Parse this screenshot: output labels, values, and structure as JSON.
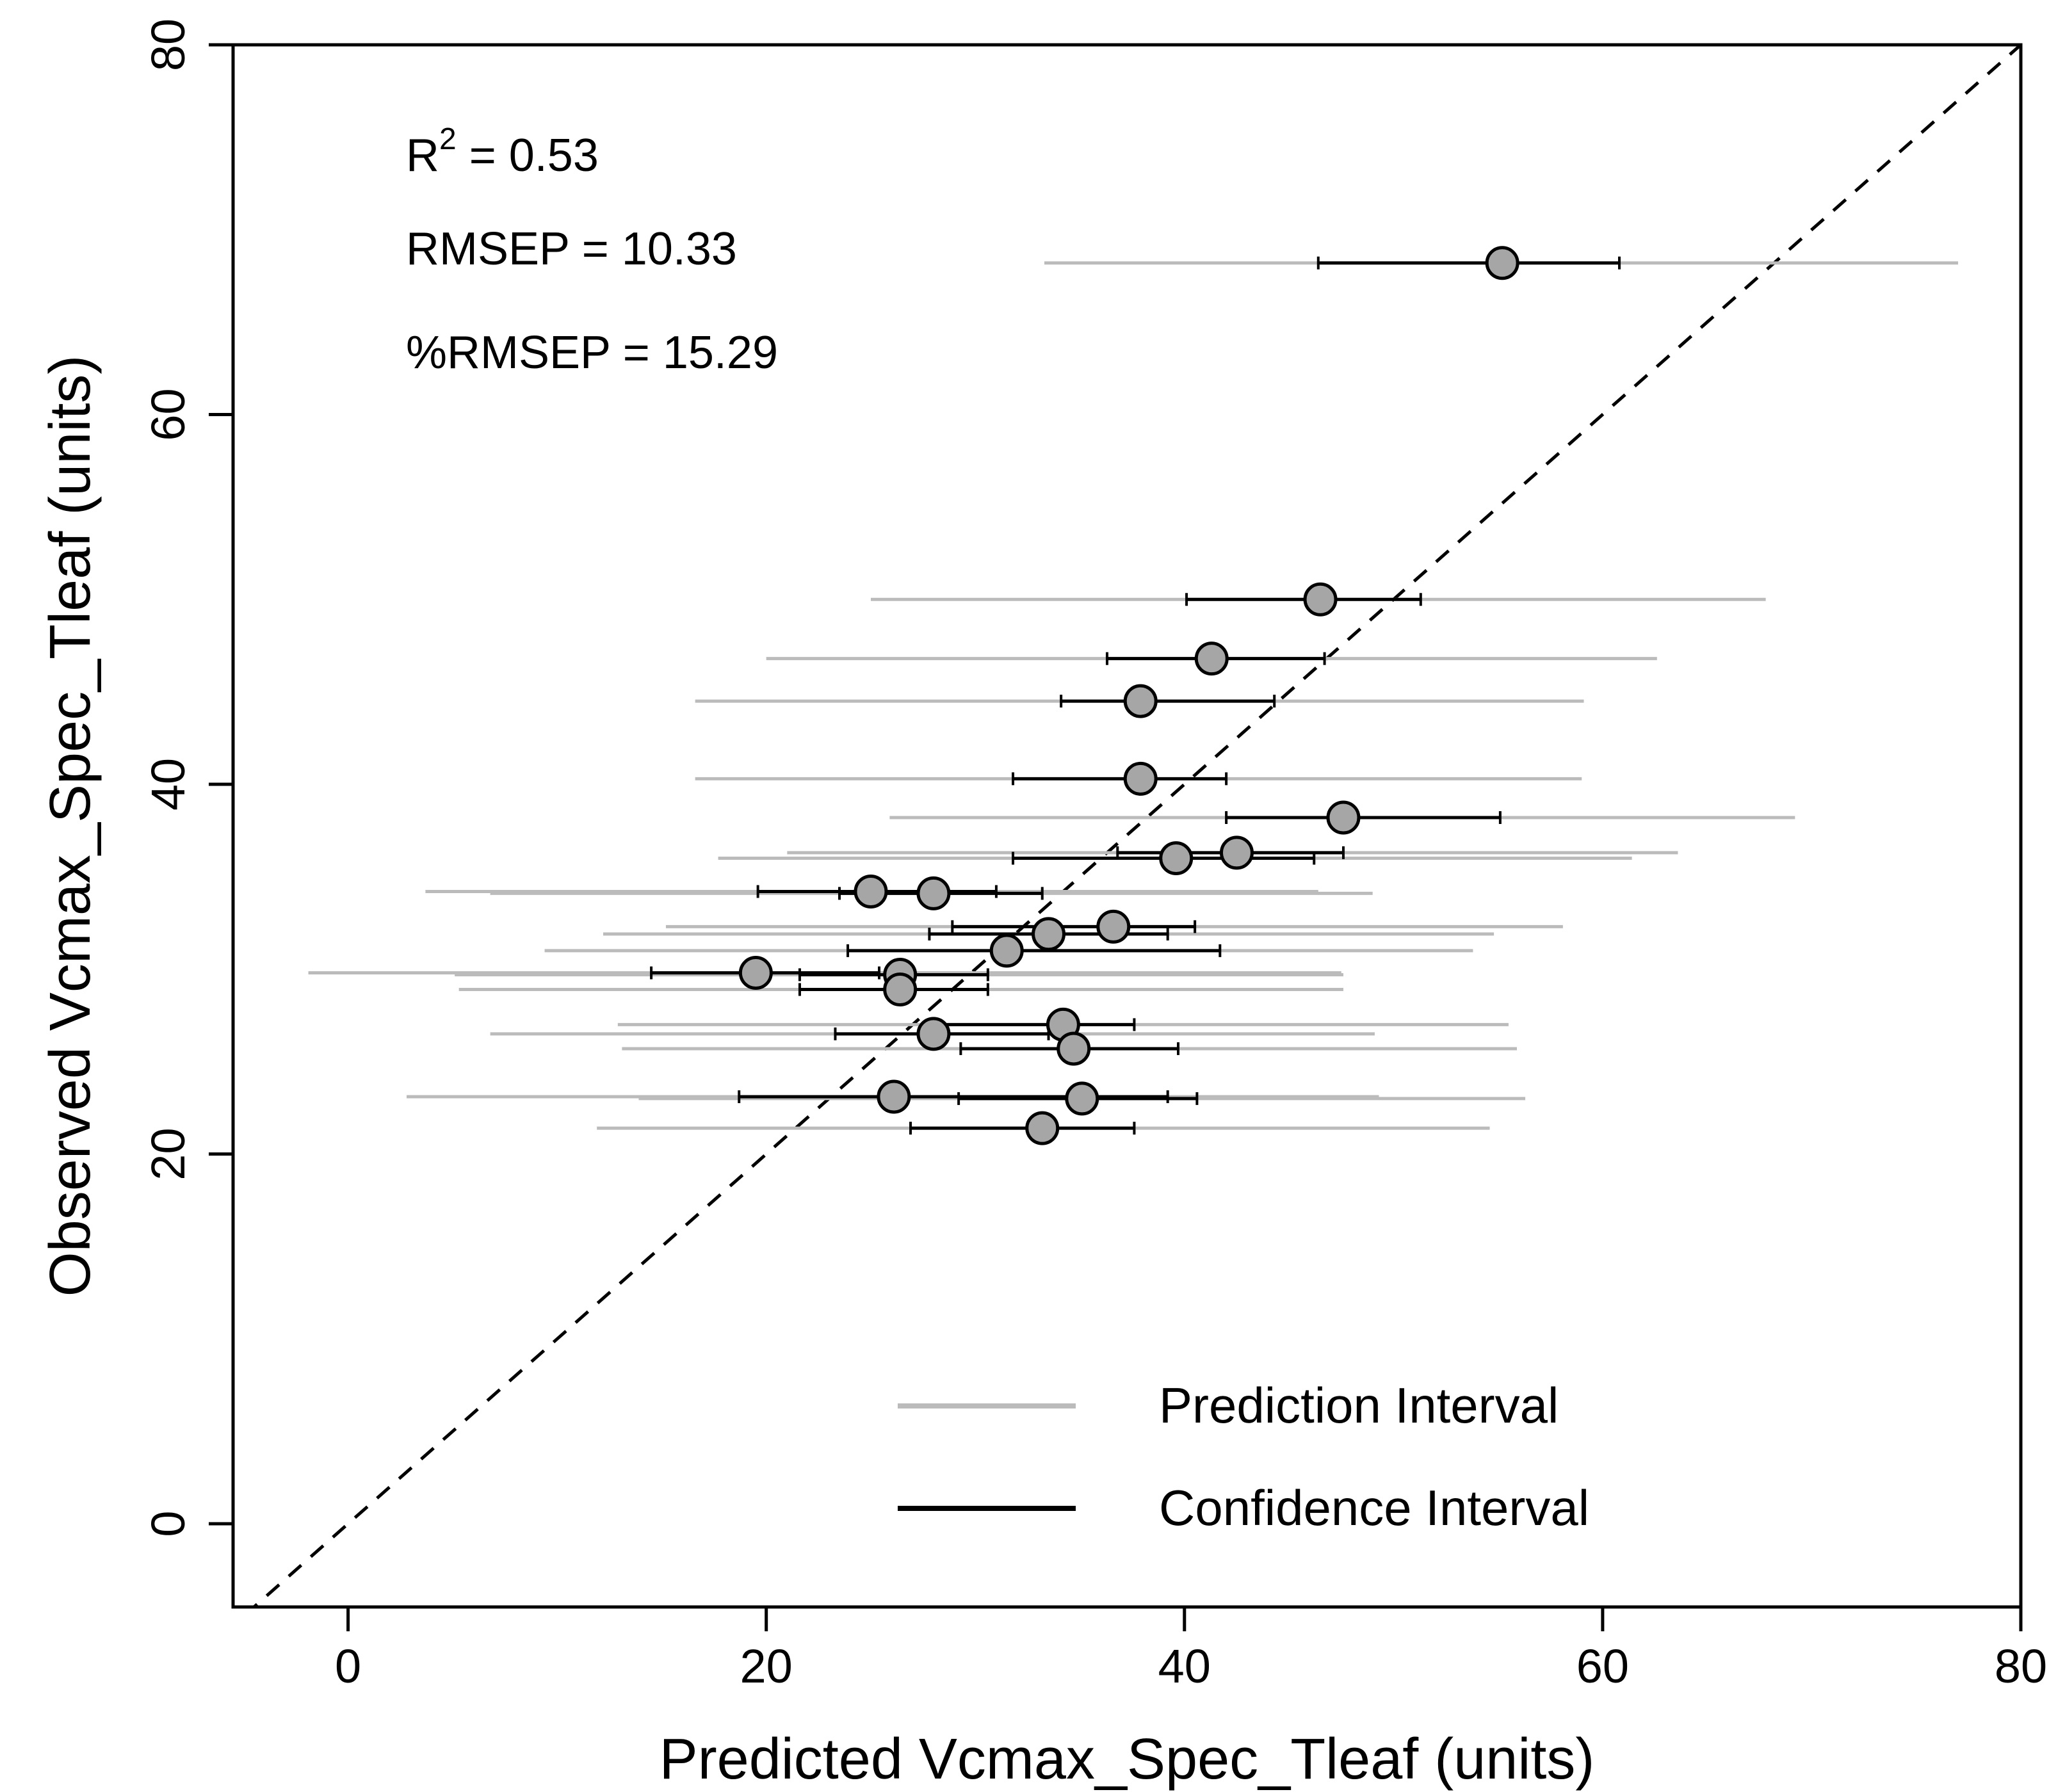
{
  "chart_data": {
    "type": "scatter",
    "title": "",
    "xlabel": "Predicted Vcmax_Spec_Tleaf (units)",
    "ylabel": "Observed Vcmax_Spec_Tleaf (units)",
    "xlim": [
      -5.5,
      80
    ],
    "ylim": [
      -4.5,
      80
    ],
    "xticks": [
      0,
      20,
      40,
      60,
      80
    ],
    "yticks": [
      0,
      20,
      40,
      60,
      80
    ],
    "grid": false,
    "reference_line": {
      "type": "1:1",
      "style": "dashed",
      "color": "#000000"
    },
    "stats": [
      {
        "label": "R",
        "superscript": "2",
        "rest": " = 0.53"
      },
      {
        "label": "RMSEP = 10.33"
      },
      {
        "label": "%RMSEP = 15.29"
      }
    ],
    "legend": {
      "position": "bottom-right",
      "entries": [
        {
          "label": "Prediction Interval",
          "color": "#bbbbbb"
        },
        {
          "label": "Confidence Interval",
          "color": "#000000"
        }
      ]
    },
    "colors": {
      "point_fill": "#a6a6a6",
      "point_stroke": "#000000",
      "prediction": "#bbbbbb",
      "confidence": "#000000"
    },
    "points": [
      {
        "x": 55.2,
        "y": 68.2,
        "ci": [
          46.4,
          60.8
        ],
        "pi": [
          33.3,
          77.0
        ]
      },
      {
        "x": 46.5,
        "y": 50.0,
        "ci": [
          40.1,
          51.3
        ],
        "pi": [
          25.0,
          67.8
        ]
      },
      {
        "x": 41.3,
        "y": 46.8,
        "ci": [
          36.3,
          46.7
        ],
        "pi": [
          20.0,
          62.6
        ]
      },
      {
        "x": 37.9,
        "y": 44.5,
        "ci": [
          34.1,
          44.3
        ],
        "pi": [
          16.6,
          59.1
        ]
      },
      {
        "x": 37.9,
        "y": 40.3,
        "ci": [
          31.8,
          42.0
        ],
        "pi": [
          16.6,
          59.0
        ]
      },
      {
        "x": 47.6,
        "y": 38.2,
        "ci": [
          42.0,
          55.1
        ],
        "pi": [
          25.9,
          69.2
        ]
      },
      {
        "x": 42.5,
        "y": 36.3,
        "ci": [
          36.8,
          47.6
        ],
        "pi": [
          21.0,
          63.6
        ]
      },
      {
        "x": 39.6,
        "y": 36.0,
        "ci": [
          31.8,
          46.2
        ],
        "pi": [
          17.7,
          61.4
        ]
      },
      {
        "x": 25.0,
        "y": 34.2,
        "ci": [
          19.6,
          31.0
        ],
        "pi": [
          3.7,
          46.4
        ]
      },
      {
        "x": 28.0,
        "y": 34.1,
        "ci": [
          23.5,
          33.2
        ],
        "pi": [
          6.8,
          49.0
        ]
      },
      {
        "x": 36.6,
        "y": 32.3,
        "ci": [
          28.9,
          40.5
        ],
        "pi": [
          15.2,
          58.1
        ]
      },
      {
        "x": 33.5,
        "y": 31.9,
        "ci": [
          27.8,
          39.2
        ],
        "pi": [
          12.2,
          54.8
        ]
      },
      {
        "x": 31.5,
        "y": 31.0,
        "ci": [
          23.9,
          41.7
        ],
        "pi": [
          9.4,
          53.8
        ]
      },
      {
        "x": 19.5,
        "y": 29.8,
        "ci": [
          14.5,
          25.4
        ],
        "pi": [
          -1.9,
          47.5
        ]
      },
      {
        "x": 26.4,
        "y": 29.7,
        "ci": [
          21.6,
          30.6
        ],
        "pi": [
          5.1,
          47.6
        ]
      },
      {
        "x": 26.4,
        "y": 28.9,
        "ci": [
          21.6,
          30.6
        ],
        "pi": [
          5.3,
          47.6
        ]
      },
      {
        "x": 34.2,
        "y": 27.0,
        "ci": [
          28.2,
          37.6
        ],
        "pi": [
          12.9,
          55.5
        ]
      },
      {
        "x": 28.0,
        "y": 26.5,
        "ci": [
          23.3,
          33.5
        ],
        "pi": [
          6.8,
          49.1
        ]
      },
      {
        "x": 34.7,
        "y": 25.7,
        "ci": [
          29.3,
          39.7
        ],
        "pi": [
          13.1,
          55.9
        ]
      },
      {
        "x": 26.1,
        "y": 23.1,
        "ci": [
          18.7,
          39.2
        ],
        "pi": [
          2.8,
          49.3
        ]
      },
      {
        "x": 35.1,
        "y": 23.0,
        "ci": [
          29.2,
          40.6
        ],
        "pi": [
          13.9,
          56.3
        ]
      },
      {
        "x": 33.2,
        "y": 21.4,
        "ci": [
          26.9,
          37.6
        ],
        "pi": [
          11.9,
          54.6
        ]
      }
    ]
  }
}
